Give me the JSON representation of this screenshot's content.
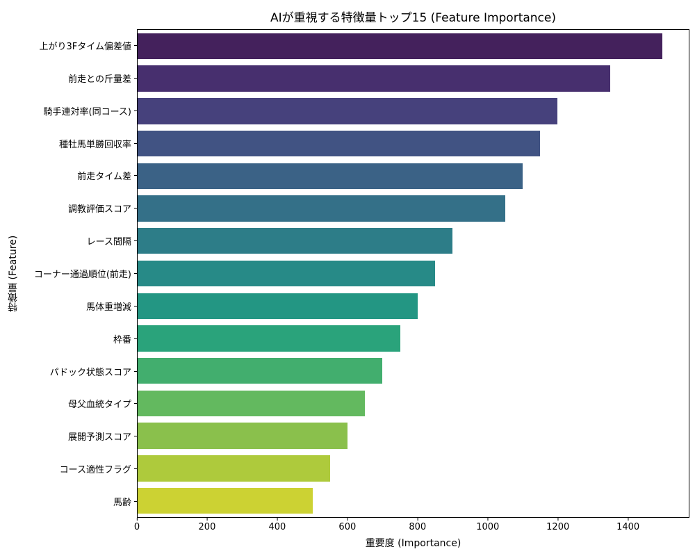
{
  "chart_data": {
    "type": "bar",
    "orientation": "horizontal",
    "title": "AIが重視する特徴量トップ15 (Feature Importance)",
    "xlabel": "重要度 (Importance)",
    "ylabel": "特徴量 (Feature)",
    "categories": [
      "上がり3Fタイム偏差値",
      "前走との斤量差",
      "騎手連対率(同コース)",
      "種牡馬単勝回収率",
      "前走タイム差",
      "調教評価スコア",
      "レース間隔",
      "コーナー通過順位(前走)",
      "馬体重増減",
      "枠番",
      "パドック状態スコア",
      "母父血統タイプ",
      "展開予測スコア",
      "コース適性フラグ",
      "馬齢"
    ],
    "values": [
      1500,
      1350,
      1200,
      1150,
      1100,
      1050,
      900,
      850,
      800,
      750,
      700,
      650,
      600,
      550,
      500
    ],
    "colors": [
      "#44215c",
      "#472f6e",
      "#46417c",
      "#415383",
      "#3b6286",
      "#347088",
      "#2d7d88",
      "#278a87",
      "#239683",
      "#2aa37b",
      "#42ae6e",
      "#63b95f",
      "#8ac04c",
      "#aeca3c",
      "#ccd233"
    ],
    "xlim": [
      0,
      1575
    ],
    "xticks": [
      0,
      200,
      400,
      600,
      800,
      1000,
      1200,
      1400
    ],
    "grid": false,
    "background": "#ffffff",
    "bar_fill_fraction": 0.8
  }
}
